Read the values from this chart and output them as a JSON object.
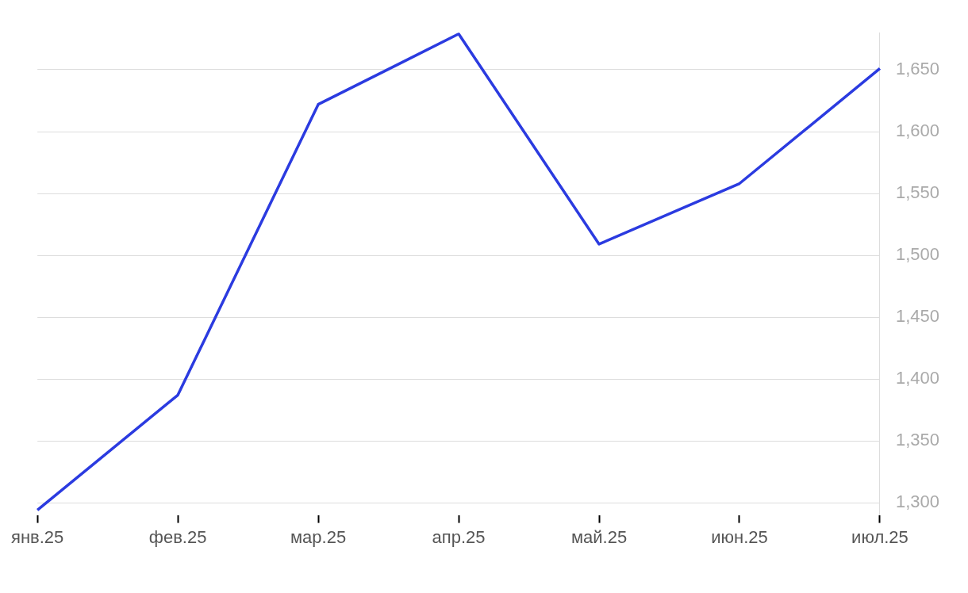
{
  "chart_data": {
    "type": "line",
    "categories": [
      "янв.25",
      "фев.25",
      "мар.25",
      "апр.25",
      "май.25",
      "июн.25",
      "июл.25"
    ],
    "series": [
      {
        "color": "#2b3be0",
        "values": [
          1294,
          1387,
          1622,
          1679,
          1509,
          1558,
          1651
        ]
      }
    ],
    "ylim": [
      1290,
      1680
    ],
    "yticks": [
      {
        "value": 1300,
        "label": "1,300"
      },
      {
        "value": 1350,
        "label": "1,350"
      },
      {
        "value": 1400,
        "label": "1,400"
      },
      {
        "value": 1450,
        "label": "1,450"
      },
      {
        "value": 1500,
        "label": "1,500"
      },
      {
        "value": 1550,
        "label": "1,550"
      },
      {
        "value": 1600,
        "label": "1,600"
      },
      {
        "value": 1650,
        "label": "1,650"
      }
    ],
    "grid": "y",
    "legend": false,
    "marker": "none",
    "line_style": "solid"
  }
}
